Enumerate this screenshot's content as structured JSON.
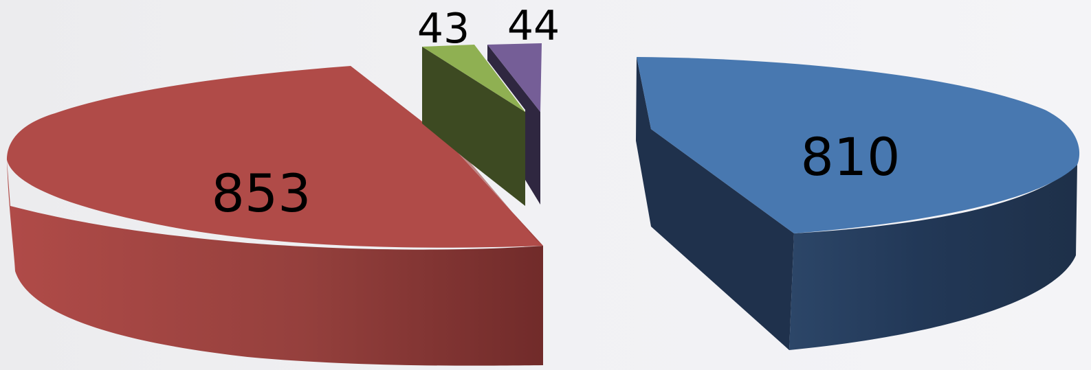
{
  "chart_data": {
    "type": "pie",
    "style": "3d-exploded",
    "slices": [
      {
        "label": "853",
        "value": 853,
        "color": "#b04b48",
        "side": "#7a2e2c",
        "top_dark": "#a64543"
      },
      {
        "label": "43",
        "value": 43,
        "color": "#8fb052",
        "side": "#3d4a22",
        "top_dark": "#7c9b45"
      },
      {
        "label": "44",
        "value": 44,
        "color": "#755e97",
        "side": "#2f2740",
        "top_dark": "#675287"
      },
      {
        "label": "810",
        "value": 810,
        "color": "#4878b0",
        "side": "#1f314c",
        "top_dark": "#3f6aa0"
      }
    ],
    "title": "",
    "legend": "none"
  }
}
